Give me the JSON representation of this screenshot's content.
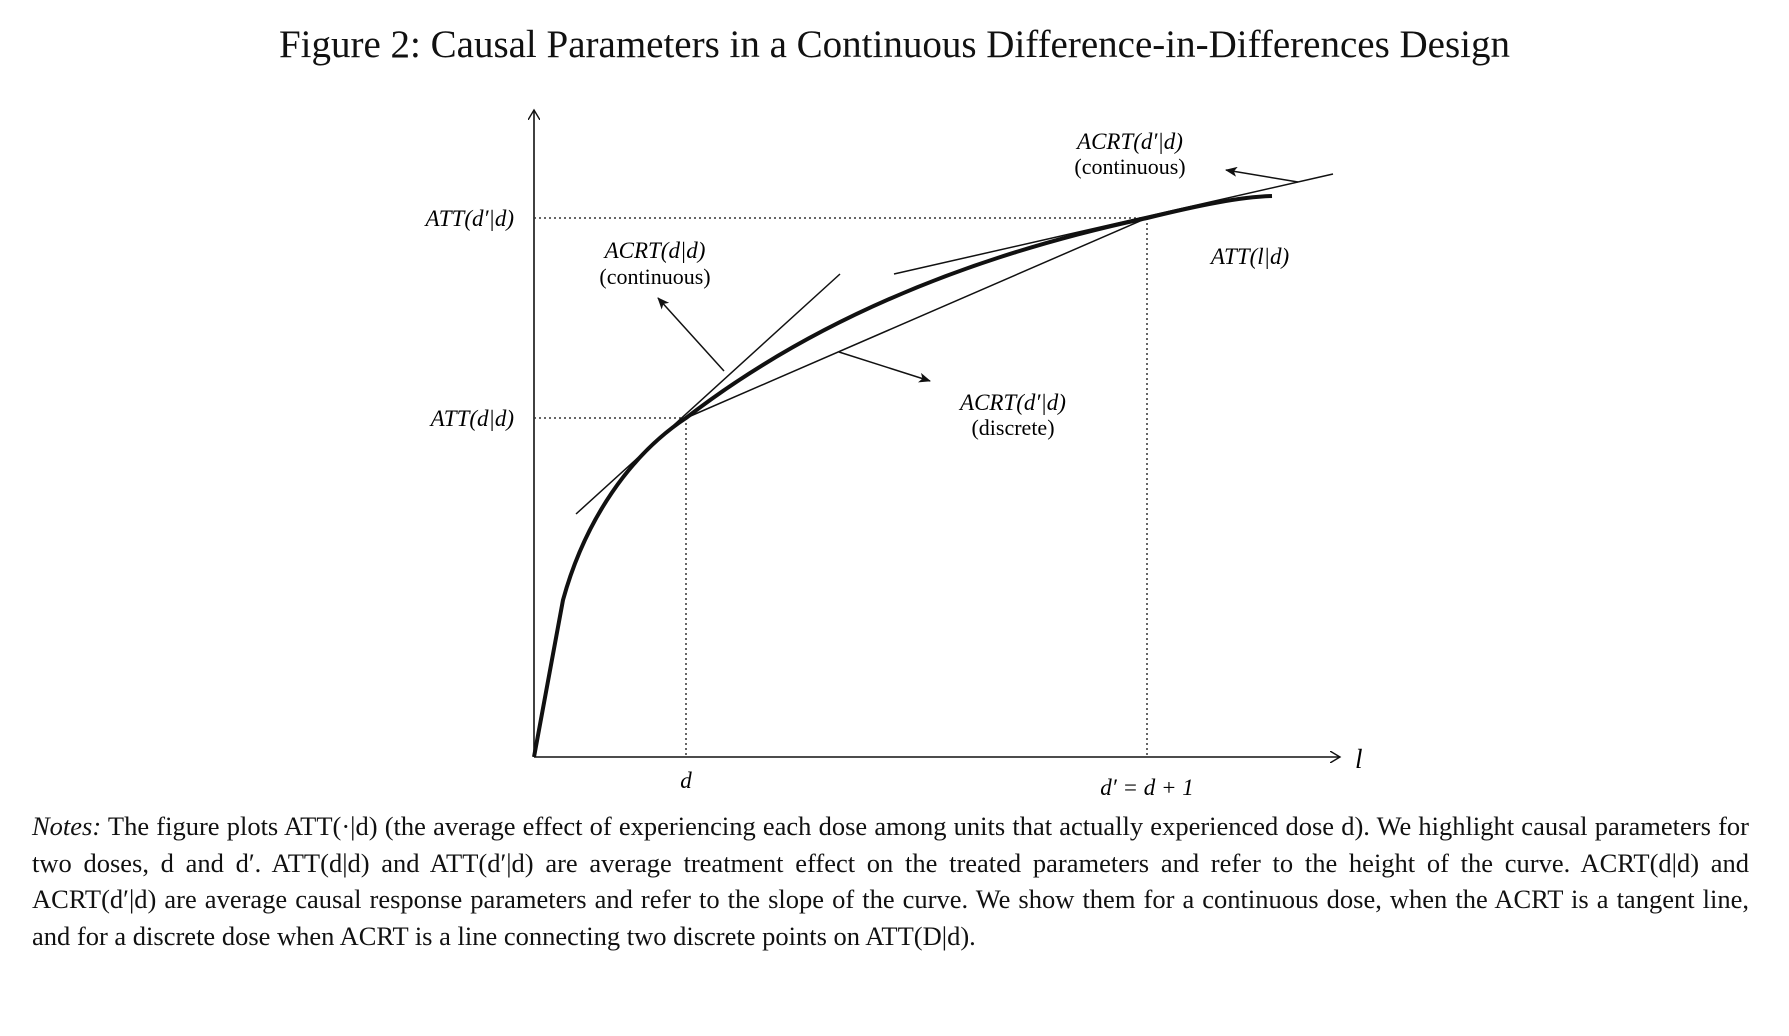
{
  "title": "Figure 2: Causal Parameters in a Continuous Difference-in-Differences Design",
  "figure": {
    "y_labels": {
      "att_dprime": "ATT(d′|d)",
      "att_d": "ATT(d|d)"
    },
    "x_labels": {
      "l": "l",
      "d": "d",
      "dprime": "d′ = d + 1"
    },
    "curve_label": "ATT(l|d)",
    "acrt_d_continuous": {
      "line1": "ACRT(d|d)",
      "line2": "(continuous)"
    },
    "acrt_dprime_continuous": {
      "line1": "ACRT(d′|d)",
      "line2": "(continuous)"
    },
    "acrt_dprime_discrete": {
      "line1": "ACRT(d′|d)",
      "line2": "(discrete)"
    }
  },
  "notes": {
    "label": "Notes:",
    "text": "The figure plots ATT(·|d) (the average effect of experiencing each dose among units that actually experienced dose d). We highlight causal parameters for two doses, d and d′. ATT(d|d) and ATT(d′|d) are average treatment effect on the treated parameters and refer to the height of the curve. ACRT(d|d) and ACRT(d′|d) are average causal response parameters and refer to the slope of the curve. We show them for a continuous dose, when the ACRT is a tangent line, and for a discrete dose when ACRT is a line connecting two discrete points on ATT(D|d)."
  }
}
